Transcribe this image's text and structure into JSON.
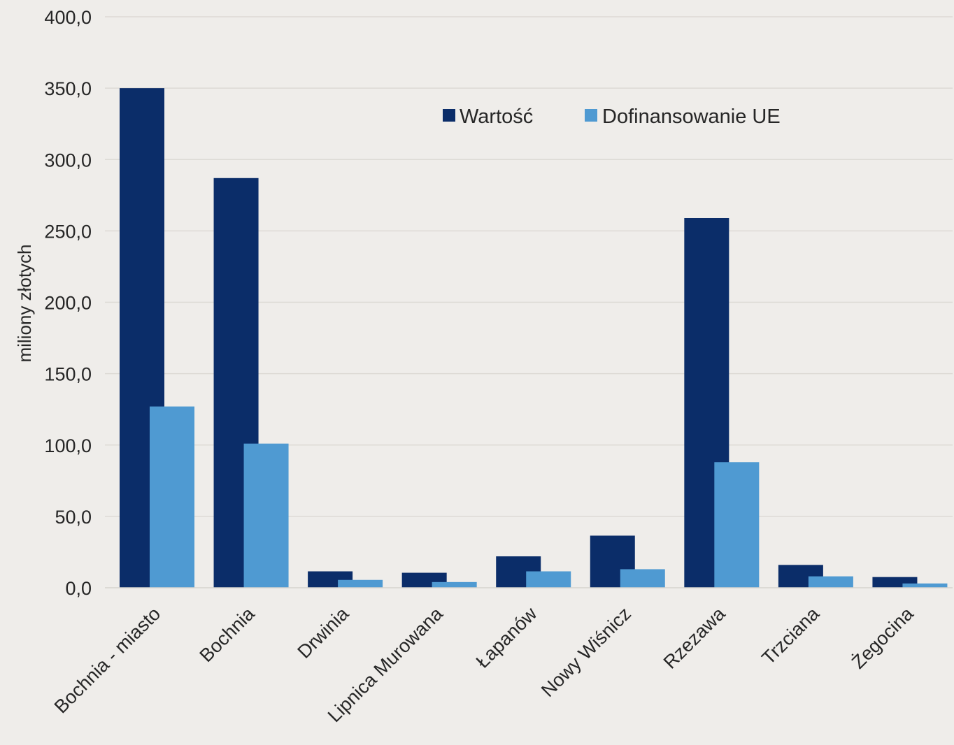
{
  "chart_data": {
    "type": "bar",
    "title": "",
    "xlabel": "",
    "ylabel": "miliony złotych",
    "ylim": [
      0,
      400
    ],
    "y_ticks": [
      "0,0",
      "50,0",
      "100,0",
      "150,0",
      "200,0",
      "250,0",
      "300,0",
      "350,0",
      "400,0"
    ],
    "y_tick_values": [
      0,
      50,
      100,
      150,
      200,
      250,
      300,
      350,
      400
    ],
    "grid": true,
    "legend_position": "top-right",
    "categories": [
      "Bochnia - miasto",
      "Bochnia",
      "Drwinia",
      "Lipnica Murowana",
      "Łapanów",
      "Nowy Wiśnicz",
      "Rzezawa",
      "Trzciana",
      "Żegocina"
    ],
    "series": [
      {
        "name": "Wartość",
        "color": "#0b2d69",
        "values": [
          350.0,
          287.0,
          11.5,
          10.5,
          22.0,
          36.5,
          259.0,
          16.0,
          7.5
        ]
      },
      {
        "name": "Dofinansowanie UE",
        "color": "#4f9ad2",
        "values": [
          127.0,
          101.0,
          5.5,
          4.0,
          11.5,
          13.0,
          88.0,
          8.0,
          3.0
        ]
      }
    ]
  }
}
